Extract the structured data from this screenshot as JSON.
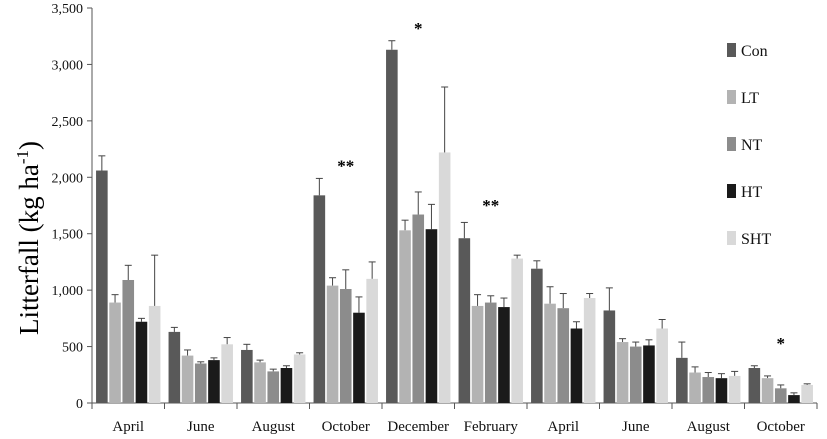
{
  "chart_data": {
    "type": "bar",
    "ylabel": "Litterfall (kg ha",
    "ylabel_sup": "-1",
    "ylabel_close": ")",
    "ylim": [
      0,
      3500
    ],
    "yticks": [
      0,
      500,
      1000,
      1500,
      2000,
      2500,
      3000,
      3500
    ],
    "ytick_labels": [
      "0",
      "500",
      "1,000",
      "1,500",
      "2,000",
      "2,500",
      "3,000",
      "3,500"
    ],
    "categories": [
      "April",
      "June",
      "August",
      "October",
      "December",
      "February",
      "April",
      "June",
      "August",
      "October"
    ],
    "legend_position": "right",
    "grid": false,
    "series": [
      {
        "name": "Con",
        "color": "#595959",
        "values": [
          2060,
          630,
          470,
          1840,
          3130,
          1460,
          1190,
          820,
          400,
          310
        ],
        "errors": [
          130,
          40,
          50,
          150,
          80,
          140,
          70,
          200,
          140,
          20
        ]
      },
      {
        "name": "LT",
        "color": "#b3b3b3",
        "values": [
          890,
          420,
          360,
          1040,
          1530,
          860,
          880,
          540,
          270,
          220
        ],
        "errors": [
          70,
          50,
          20,
          70,
          90,
          100,
          150,
          30,
          50,
          20
        ]
      },
      {
        "name": "NT",
        "color": "#8c8c8c",
        "values": [
          1090,
          350,
          280,
          1010,
          1670,
          890,
          840,
          500,
          230,
          130
        ],
        "errors": [
          130,
          15,
          20,
          170,
          200,
          60,
          130,
          40,
          40,
          30
        ]
      },
      {
        "name": "HT",
        "color": "#1a1a1a",
        "values": [
          720,
          380,
          310,
          800,
          1540,
          850,
          660,
          510,
          220,
          70
        ],
        "errors": [
          30,
          20,
          20,
          140,
          220,
          80,
          60,
          50,
          40,
          20
        ]
      },
      {
        "name": "SHT",
        "color": "#d9d9d9",
        "values": [
          860,
          520,
          430,
          1100,
          2220,
          1280,
          930,
          660,
          240,
          160
        ],
        "errors": [
          450,
          60,
          15,
          150,
          580,
          30,
          40,
          80,
          40,
          10
        ]
      }
    ],
    "annotations": [
      {
        "text": "**",
        "category_index": 3,
        "y": 2050
      },
      {
        "text": "*",
        "category_index": 4,
        "y": 3270
      },
      {
        "text": "**",
        "category_index": 5,
        "y": 1700
      },
      {
        "text": "*",
        "category_index": 9,
        "y": 480
      }
    ]
  }
}
